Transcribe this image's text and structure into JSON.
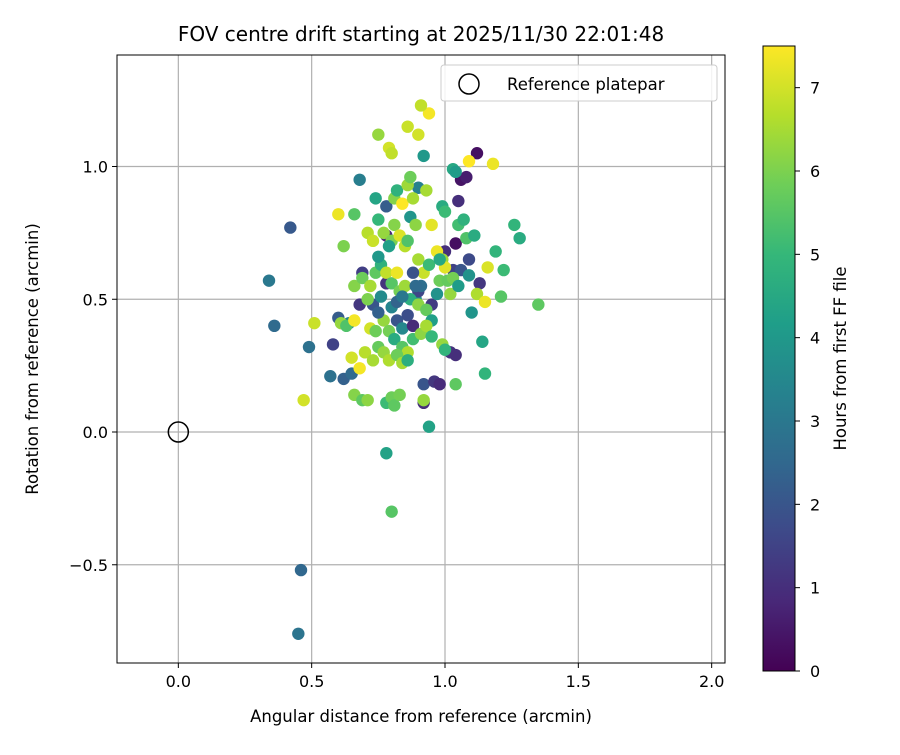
{
  "chart_data": {
    "type": "scatter",
    "title": "FOV centre drift starting at 2025/11/30 22:01:48",
    "xlabel": "Angular distance from reference (arcmin)",
    "ylabel": "Rotation from reference (arcmin)",
    "xlim": [
      -0.23,
      2.05
    ],
    "ylim": [
      -0.87,
      1.42
    ],
    "grid": true,
    "x_ticks": [
      0.0,
      0.5,
      1.0,
      1.5,
      2.0
    ],
    "x_tick_labels": [
      "0.0",
      "0.5",
      "1.0",
      "1.5",
      "2.0"
    ],
    "y_ticks": [
      -0.5,
      0.0,
      0.5,
      1.0
    ],
    "y_tick_labels": [
      "−0.5",
      "0.0",
      "0.5",
      "1.0"
    ],
    "legend": {
      "position": "top-right",
      "entries": [
        {
          "label": "Reference platepar",
          "marker": "open-circle",
          "color": "#000000"
        }
      ]
    },
    "reference_point": {
      "x": 0.0,
      "y": 0.0
    },
    "colorbar": {
      "label": "Hours from first FF file",
      "range": [
        0,
        7.5
      ],
      "ticks": [
        0,
        1,
        2,
        3,
        4,
        5,
        6,
        7
      ],
      "tick_labels": [
        "0",
        "1",
        "2",
        "3",
        "4",
        "5",
        "6",
        "7"
      ],
      "colormap_stops": [
        "#440154",
        "#482878",
        "#3e4989",
        "#31688e",
        "#26828e",
        "#1f9e89",
        "#35b779",
        "#6ece58",
        "#b5de2b",
        "#fde725"
      ]
    },
    "points": [
      [
        0.42,
        0.77,
        2.1
      ],
      [
        0.34,
        0.57,
        3.0
      ],
      [
        0.36,
        0.4,
        2.6
      ],
      [
        0.49,
        0.32,
        2.8
      ],
      [
        0.46,
        -0.52,
        2.5
      ],
      [
        0.45,
        -0.76,
        2.9
      ],
      [
        0.57,
        0.21,
        2.8
      ],
      [
        0.62,
        0.2,
        2.3
      ],
      [
        0.65,
        0.22,
        2.6
      ],
      [
        0.58,
        0.33,
        1.5
      ],
      [
        0.6,
        0.43,
        2.2
      ],
      [
        0.64,
        0.41,
        3.3
      ],
      [
        0.68,
        0.48,
        1.2
      ],
      [
        0.69,
        0.6,
        1.4
      ],
      [
        0.68,
        0.95,
        3.2
      ],
      [
        0.73,
        0.48,
        2.0
      ],
      [
        0.76,
        0.51,
        3.6
      ],
      [
        0.78,
        0.56,
        1.1
      ],
      [
        0.78,
        0.74,
        0.8
      ],
      [
        0.78,
        0.85,
        2.2
      ],
      [
        0.8,
        0.47,
        3.4
      ],
      [
        0.82,
        0.42,
        2.0
      ],
      [
        0.84,
        0.39,
        3.5
      ],
      [
        0.86,
        0.44,
        1.8
      ],
      [
        0.88,
        0.4,
        0.9
      ],
      [
        0.89,
        0.5,
        3.7
      ],
      [
        0.9,
        0.53,
        1.6
      ],
      [
        0.91,
        0.55,
        2.7
      ],
      [
        0.92,
        0.11,
        1.0
      ],
      [
        0.92,
        0.18,
        2.0
      ],
      [
        0.96,
        0.19,
        1.2
      ],
      [
        0.98,
        0.18,
        0.9
      ],
      [
        0.95,
        0.48,
        1.3
      ],
      [
        0.97,
        0.52,
        3.8
      ],
      [
        1.02,
        0.3,
        1.1
      ],
      [
        1.04,
        0.29,
        1.0
      ],
      [
        1.0,
        0.68,
        1.0
      ],
      [
        1.04,
        0.71,
        0.3
      ],
      [
        1.05,
        0.87,
        1.0
      ],
      [
        1.06,
        0.95,
        0.4
      ],
      [
        1.08,
        0.96,
        0.6
      ],
      [
        1.12,
        1.05,
        0.3
      ],
      [
        1.03,
        0.61,
        1.5
      ],
      [
        1.06,
        0.61,
        2.0
      ],
      [
        1.09,
        0.65,
        1.7
      ],
      [
        1.1,
        0.45,
        3.9
      ],
      [
        1.13,
        0.56,
        1.2
      ],
      [
        1.14,
        0.34,
        4.4
      ],
      [
        1.15,
        0.22,
        4.9
      ],
      [
        1.19,
        0.68,
        4.9
      ],
      [
        1.21,
        0.51,
        5.5
      ],
      [
        1.22,
        0.61,
        5.1
      ],
      [
        1.26,
        0.78,
        4.9
      ],
      [
        1.28,
        0.73,
        4.6
      ],
      [
        1.35,
        0.48,
        5.6
      ],
      [
        0.9,
        0.92,
        3.3
      ],
      [
        0.92,
        1.04,
        4.0
      ],
      [
        0.93,
        0.91,
        6.5
      ],
      [
        0.99,
        0.85,
        4.6
      ],
      [
        1.0,
        0.83,
        5.1
      ],
      [
        1.03,
        0.99,
        4.5
      ],
      [
        1.04,
        0.98,
        4.1
      ],
      [
        1.05,
        0.78,
        5.2
      ],
      [
        1.07,
        0.8,
        4.8
      ],
      [
        1.08,
        0.73,
        5.4
      ],
      [
        1.11,
        0.74,
        4.6
      ],
      [
        1.12,
        0.52,
        6.6
      ],
      [
        1.15,
        0.49,
        7.3
      ],
      [
        1.16,
        0.62,
        7.1
      ],
      [
        1.18,
        1.01,
        7.3
      ],
      [
        1.09,
        1.02,
        7.5
      ],
      [
        0.94,
        1.2,
        7.4
      ],
      [
        0.91,
        1.23,
        6.8
      ],
      [
        0.9,
        1.12,
        7.0
      ],
      [
        0.86,
        1.15,
        6.9
      ],
      [
        0.79,
        1.07,
        7.0
      ],
      [
        0.8,
        1.05,
        6.8
      ],
      [
        0.75,
        1.12,
        6.3
      ],
      [
        0.74,
        0.88,
        4.4
      ],
      [
        0.81,
        0.88,
        6.1
      ],
      [
        0.82,
        0.91,
        4.8
      ],
      [
        0.84,
        0.86,
        7.5
      ],
      [
        0.86,
        0.93,
        6.4
      ],
      [
        0.87,
        0.96,
        5.8
      ],
      [
        0.88,
        0.88,
        6.5
      ],
      [
        0.6,
        0.82,
        7.3
      ],
      [
        0.66,
        0.82,
        5.5
      ],
      [
        0.62,
        0.7,
        6.0
      ],
      [
        0.71,
        0.75,
        6.7
      ],
      [
        0.73,
        0.72,
        6.9
      ],
      [
        0.75,
        0.8,
        5.0
      ],
      [
        0.77,
        0.75,
        6.3
      ],
      [
        0.8,
        0.72,
        6.0
      ],
      [
        0.81,
        0.78,
        6.1
      ],
      [
        0.83,
        0.74,
        7.1
      ],
      [
        0.85,
        0.7,
        6.7
      ],
      [
        0.86,
        0.72,
        5.4
      ],
      [
        0.87,
        0.81,
        3.9
      ],
      [
        0.89,
        0.78,
        6.2
      ],
      [
        0.9,
        0.65,
        6.5
      ],
      [
        0.92,
        0.6,
        6.9
      ],
      [
        0.94,
        0.63,
        5.1
      ],
      [
        0.95,
        0.78,
        7.2
      ],
      [
        0.97,
        0.68,
        7.3
      ],
      [
        0.98,
        0.57,
        5.8
      ],
      [
        0.99,
        0.65,
        6.4
      ],
      [
        1.0,
        0.62,
        7.2
      ],
      [
        1.01,
        0.57,
        5.7
      ],
      [
        1.02,
        0.52,
        6.3
      ],
      [
        1.03,
        0.58,
        5.9
      ],
      [
        0.66,
        0.55,
        6.1
      ],
      [
        0.69,
        0.58,
        5.8
      ],
      [
        0.71,
        0.5,
        6.0
      ],
      [
        0.72,
        0.55,
        6.5
      ],
      [
        0.74,
        0.6,
        5.6
      ],
      [
        0.76,
        0.63,
        4.8
      ],
      [
        0.78,
        0.6,
        6.8
      ],
      [
        0.8,
        0.56,
        5.5
      ],
      [
        0.82,
        0.6,
        7.3
      ],
      [
        0.83,
        0.53,
        5.9
      ],
      [
        0.85,
        0.55,
        6.4
      ],
      [
        0.87,
        0.5,
        4.7
      ],
      [
        0.9,
        0.48,
        6.2
      ],
      [
        0.93,
        0.46,
        5.7
      ],
      [
        0.95,
        0.42,
        4.2
      ],
      [
        0.51,
        0.41,
        6.9
      ],
      [
        0.61,
        0.41,
        6.3
      ],
      [
        0.63,
        0.4,
        5.4
      ],
      [
        0.66,
        0.42,
        7.4
      ],
      [
        0.72,
        0.39,
        7.0
      ],
      [
        0.74,
        0.38,
        5.8
      ],
      [
        0.77,
        0.42,
        6.3
      ],
      [
        0.79,
        0.38,
        5.9
      ],
      [
        0.81,
        0.35,
        4.6
      ],
      [
        0.84,
        0.32,
        5.5
      ],
      [
        0.86,
        0.3,
        6.6
      ],
      [
        0.88,
        0.35,
        5.2
      ],
      [
        0.91,
        0.37,
        6.2
      ],
      [
        0.93,
        0.4,
        6.5
      ],
      [
        0.95,
        0.36,
        5.0
      ],
      [
        0.65,
        0.28,
        7.0
      ],
      [
        0.7,
        0.3,
        6.7
      ],
      [
        0.73,
        0.27,
        6.5
      ],
      [
        0.75,
        0.32,
        5.7
      ],
      [
        0.77,
        0.3,
        6.3
      ],
      [
        0.79,
        0.27,
        6.6
      ],
      [
        0.82,
        0.29,
        5.8
      ],
      [
        0.84,
        0.26,
        6.5
      ],
      [
        0.86,
        0.27,
        4.7
      ],
      [
        0.99,
        0.33,
        6.3
      ],
      [
        0.66,
        0.14,
        6.1
      ],
      [
        0.68,
        0.24,
        7.4
      ],
      [
        0.69,
        0.12,
        5.6
      ],
      [
        0.71,
        0.12,
        6.2
      ],
      [
        0.78,
        0.11,
        5.1
      ],
      [
        0.8,
        0.13,
        5.8
      ],
      [
        0.81,
        0.1,
        5.6
      ],
      [
        0.83,
        0.14,
        5.9
      ],
      [
        0.92,
        0.12,
        6.3
      ],
      [
        0.94,
        0.02,
        4.3
      ],
      [
        1.04,
        0.18,
        5.6
      ],
      [
        1.0,
        0.31,
        4.9
      ],
      [
        0.78,
        -0.08,
        4.3
      ],
      [
        0.8,
        -0.3,
        5.5
      ],
      [
        0.47,
        0.12,
        7.0
      ],
      [
        1.09,
        0.59,
        3.8
      ],
      [
        1.05,
        0.55,
        4.1
      ],
      [
        0.98,
        0.65,
        4.5
      ],
      [
        0.79,
        0.7,
        4.2
      ],
      [
        0.75,
        0.66,
        4.0
      ],
      [
        0.88,
        0.6,
        1.9
      ],
      [
        0.82,
        0.49,
        2.4
      ],
      [
        0.89,
        0.55,
        2.6
      ],
      [
        0.84,
        0.51,
        3.0
      ],
      [
        0.75,
        0.45,
        2.3
      ]
    ]
  }
}
